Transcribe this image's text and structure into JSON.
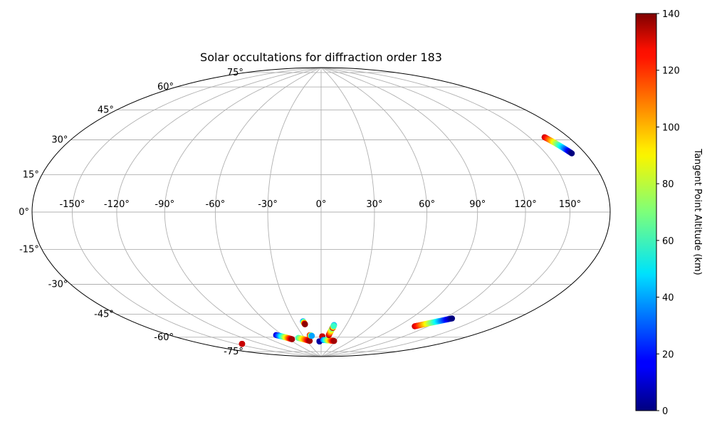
{
  "chart_data": {
    "type": "scatter",
    "projection": "hammer",
    "title": "Solar occultations for diffraction order 183",
    "grid": true,
    "longitude_ticks": [
      -150,
      -120,
      -90,
      -60,
      -30,
      0,
      30,
      60,
      90,
      120,
      150
    ],
    "longitude_tick_labels": [
      "-150°",
      "-120°",
      "-90°",
      "-60°",
      "-30°",
      "0°",
      "30°",
      "60°",
      "90°",
      "120°",
      "150°"
    ],
    "latitude_ticks": [
      75,
      60,
      45,
      30,
      15,
      0,
      -15,
      -30,
      -45,
      -60,
      -75
    ],
    "latitude_tick_labels": [
      "75°",
      "60°",
      "45°",
      "30°",
      "15°",
      "0°",
      "-15°",
      "-30°",
      "-45°",
      "-60°",
      "-75°"
    ],
    "xlim": [
      -180,
      180
    ],
    "ylim": [
      -90,
      90
    ],
    "colorbar": {
      "label": "Tangent Point Altitude (km)",
      "range": [
        0,
        140
      ],
      "ticks": [
        0,
        20,
        40,
        60,
        80,
        100,
        120,
        140
      ],
      "tick_labels": [
        "0",
        "20",
        "40",
        "60",
        "80",
        "100",
        "120",
        "140"
      ],
      "colormap": "jet"
    },
    "tracks": [
      {
        "lon_start": 161.5,
        "lat_start": 33.5,
        "lon_end": 169.5,
        "lat_end": 25.0,
        "alt_start": 130,
        "alt_end": 0
      },
      {
        "lon_start": -69.5,
        "lat_start": -72.2,
        "lon_end": -54.5,
        "lat_end": -76.0,
        "alt_start": 10,
        "alt_end": 135
      },
      {
        "lon_start": -41.0,
        "lat_start": -75.5,
        "lon_end": -24.0,
        "lat_end": -78.0,
        "alt_start": 60,
        "alt_end": 135
      },
      {
        "lon_start": -20.0,
        "lat_start": -64.5,
        "lon_end": -19.0,
        "lat_end": -66.5,
        "alt_start": 30,
        "alt_end": 138
      },
      {
        "lon_start": -18.5,
        "lat_start": -74.0,
        "lon_end": -15.5,
        "lat_end": -74.5,
        "alt_start": 138,
        "alt_end": 40
      },
      {
        "lon_start": -3.5,
        "lat_start": -78.5,
        "lon_end": -3.5,
        "lat_end": -78.5,
        "alt_start": 5,
        "alt_end": 5
      },
      {
        "lon_start": 2.0,
        "lat_start": -75.0,
        "lon_end": 2.0,
        "lat_end": -75.0,
        "alt_start": 130,
        "alt_end": 130
      },
      {
        "lon_start": 4.0,
        "lat_start": -77.5,
        "lon_end": 27.5,
        "lat_end": -78.0,
        "alt_start": 30,
        "alt_end": 135
      },
      {
        "lon_start": 12.5,
        "lat_start": -74.0,
        "lon_end": 15.5,
        "lat_end": -67.0,
        "alt_start": 135,
        "alt_end": 40
      },
      {
        "lon_start": 15.0,
        "lat_start": -69.0,
        "lon_end": 15.5,
        "lat_end": -67.5,
        "alt_start": 135,
        "alt_end": 60
      },
      {
        "lon_start": 107.0,
        "lat_start": -63.0,
        "lon_end": 127.0,
        "lat_end": -55.5,
        "alt_start": 130,
        "alt_end": 0
      },
      {
        "lon_start": -144.0,
        "lat_start": -72.5,
        "lon_end": -144.0,
        "lat_end": -72.5,
        "alt_start": 130,
        "alt_end": 130
      }
    ]
  }
}
